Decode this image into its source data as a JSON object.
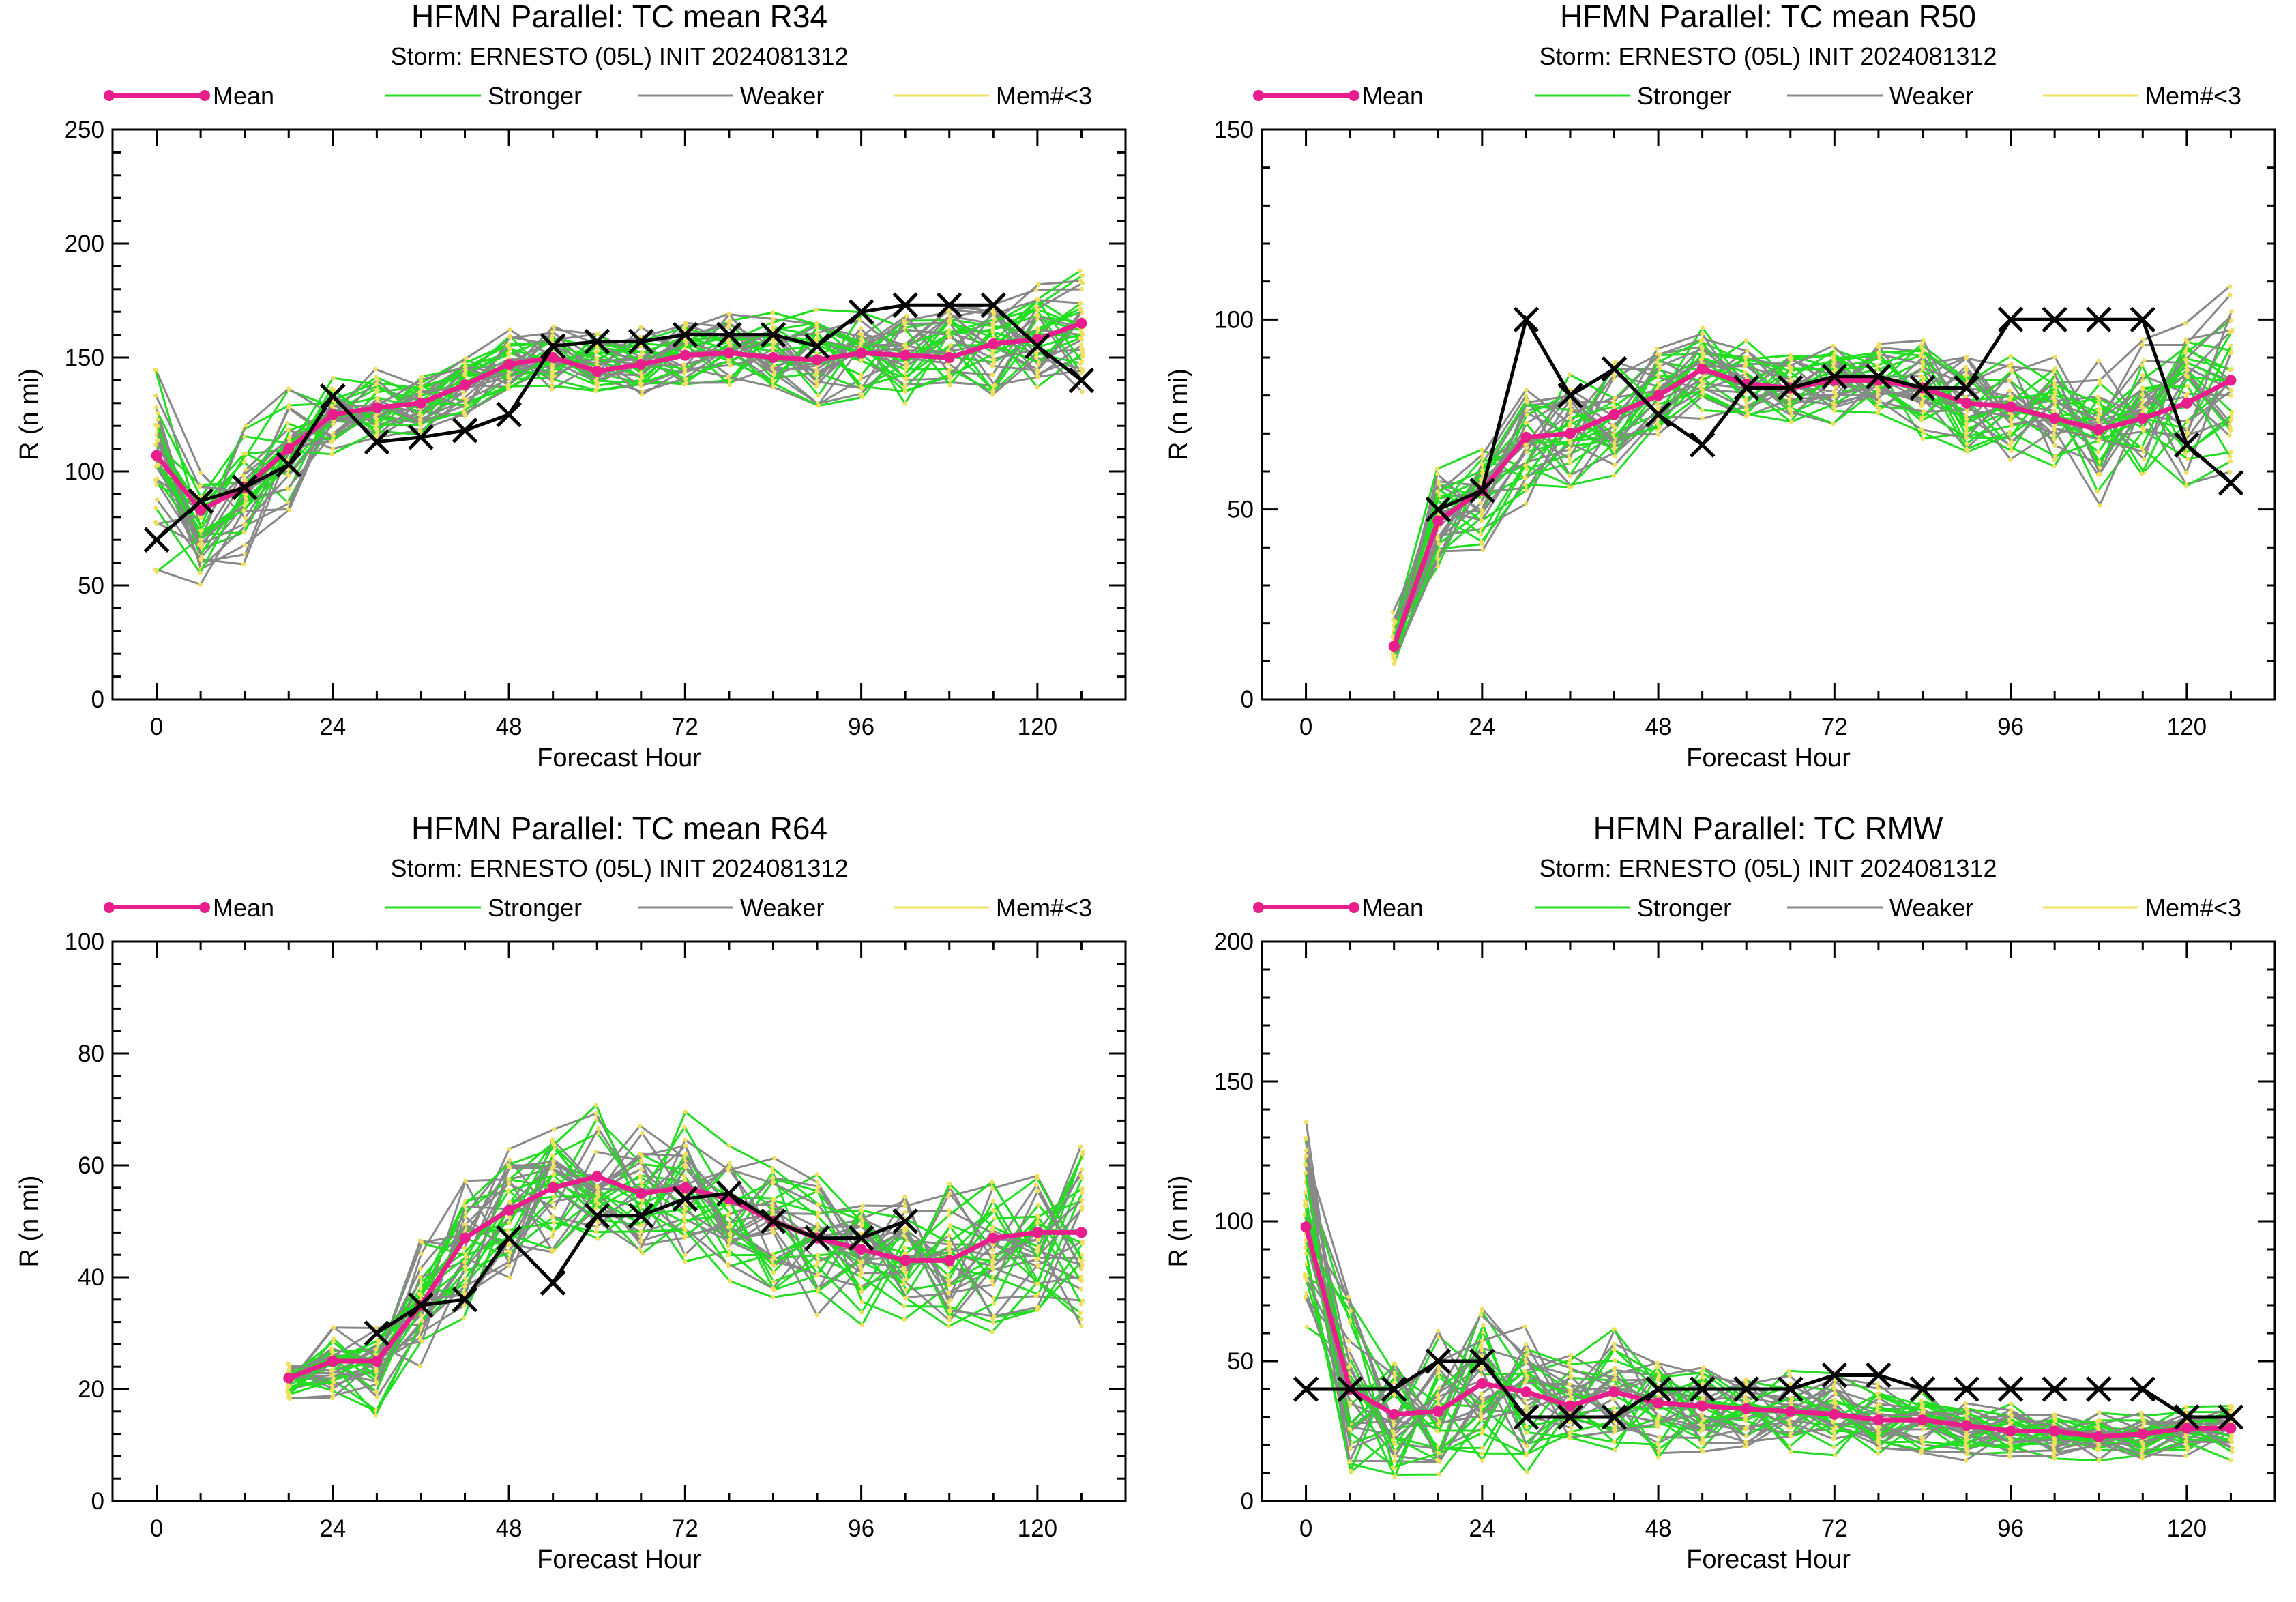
{
  "legend": {
    "mean": "Mean",
    "stronger": "Stronger",
    "weaker": "Weaker",
    "mem": "Mem#<3"
  },
  "colors": {
    "mean": "#e91e8c",
    "stronger": "#22dd22",
    "weaker": "#888888",
    "mem": "#f0e060",
    "obs": "#000000"
  },
  "chart_data": [
    {
      "id": "r34",
      "type": "line",
      "title": "HFMN Parallel: TC mean R34",
      "subtitle": "Storm: ERNESTO (05L) INIT 2024081312",
      "xlabel": "Forecast Hour",
      "ylabel": "R (n mi)",
      "xlim": [
        -6,
        132
      ],
      "ylim": [
        0,
        250
      ],
      "xticks": [
        0,
        24,
        48,
        72,
        96,
        120
      ],
      "yticks": [
        0,
        50,
        100,
        150,
        200,
        250
      ],
      "grid": false,
      "legend_position": "top",
      "series": [
        {
          "name": "Mean",
          "x": [
            0,
            6,
            12,
            18,
            24,
            30,
            36,
            42,
            48,
            54,
            60,
            66,
            72,
            78,
            84,
            90,
            96,
            102,
            108,
            114,
            120,
            126
          ],
          "y": [
            107,
            83,
            93,
            110,
            125,
            128,
            130,
            138,
            147,
            150,
            144,
            147,
            151,
            152,
            150,
            149,
            152,
            151,
            150,
            156,
            158,
            165
          ]
        },
        {
          "x": [
            0,
            6,
            12,
            18,
            24,
            30,
            36,
            42,
            48,
            54,
            60,
            66,
            72,
            78,
            84,
            90,
            96,
            102,
            108,
            114,
            120,
            126
          ],
          "y": [
            70,
            87,
            93,
            103,
            133,
            113,
            115,
            118,
            125,
            155,
            157,
            157,
            160,
            160,
            160,
            155,
            170,
            173,
            173,
            173,
            155,
            140
          ]
        }
      ],
      "ensemble": {
        "base": [
          100,
          76,
          90,
          108,
          124,
          128,
          131,
          138,
          146,
          150,
          146,
          147,
          151,
          151,
          150,
          149,
          151,
          151,
          151,
          155,
          157,
          162
        ],
        "spread": [
          40,
          20,
          25,
          22,
          15,
          13,
          13,
          14,
          14,
          13,
          13,
          14,
          15,
          15,
          16,
          17,
          18,
          18,
          20,
          21,
          22,
          23
        ]
      }
    },
    {
      "id": "r50",
      "type": "line",
      "title": "HFMN Parallel: TC mean R50",
      "subtitle": "Storm: ERNESTO (05L) INIT 2024081312",
      "xlabel": "Forecast Hour",
      "ylabel": "R (n mi)",
      "xlim": [
        -6,
        132
      ],
      "ylim": [
        0,
        150
      ],
      "xticks": [
        0,
        24,
        48,
        72,
        96,
        120
      ],
      "yticks": [
        0,
        50,
        100,
        150
      ],
      "grid": false,
      "legend_position": "top",
      "series": [
        {
          "name": "Mean",
          "x": [
            12,
            18,
            24,
            30,
            36,
            42,
            48,
            54,
            60,
            66,
            72,
            78,
            84,
            90,
            96,
            102,
            108,
            114,
            120,
            126
          ],
          "y": [
            14,
            47,
            55,
            69,
            70,
            75,
            80,
            87,
            83,
            82,
            84,
            84,
            82,
            78,
            77,
            74,
            71,
            74,
            78,
            84
          ]
        },
        {
          "x": [
            18,
            24,
            30,
            36,
            42,
            48,
            54,
            60,
            66,
            72,
            78,
            84,
            90,
            96,
            102,
            108,
            114,
            120,
            126
          ],
          "y": [
            50,
            55,
            100,
            80,
            87,
            75,
            67,
            82,
            82,
            85,
            85,
            82,
            82,
            100,
            100,
            100,
            100,
            67,
            57
          ]
        }
      ],
      "ensemble": {
        "base": [
          15,
          47,
          54,
          68,
          70,
          75,
          80,
          86,
          83,
          82,
          83,
          83,
          81,
          78,
          77,
          74,
          71,
          74,
          78,
          84
        ],
        "spread": [
          6,
          12,
          12,
          14,
          14,
          13,
          11,
          10,
          9,
          9,
          9,
          10,
          11,
          12,
          13,
          14,
          16,
          17,
          18,
          20
        ]
      }
    },
    {
      "id": "r64",
      "type": "line",
      "title": "HFMN Parallel: TC mean R64",
      "subtitle": "Storm: ERNESTO (05L) INIT 2024081312",
      "xlabel": "Forecast Hour",
      "ylabel": "R (n mi)",
      "xlim": [
        -6,
        132
      ],
      "ylim": [
        0,
        100
      ],
      "xticks": [
        0,
        24,
        48,
        72,
        96,
        120
      ],
      "yticks": [
        0,
        20,
        40,
        60,
        80,
        100
      ],
      "grid": false,
      "legend_position": "top",
      "series": [
        {
          "name": "Mean",
          "x": [
            18,
            24,
            30,
            36,
            42,
            48,
            54,
            60,
            66,
            72,
            78,
            84,
            90,
            96,
            102,
            108,
            114,
            120,
            126
          ],
          "y": [
            22,
            25,
            25,
            35,
            47,
            52,
            56,
            58,
            55,
            56,
            54,
            50,
            47,
            45,
            43,
            43,
            47,
            48,
            48
          ]
        },
        {
          "x": [
            30,
            36,
            42,
            48,
            54,
            60,
            66,
            72,
            78,
            84,
            90,
            96,
            102
          ],
          "y": [
            30,
            35,
            36,
            47,
            39,
            51,
            51,
            54,
            55,
            50,
            47,
            47,
            50
          ]
        }
      ],
      "ensemble": {
        "base": [
          22,
          25,
          25,
          36,
          47,
          52,
          56,
          57,
          55,
          55,
          53,
          50,
          47,
          45,
          44,
          44,
          46,
          47,
          48
        ],
        "spread": [
          3,
          6,
          8,
          10,
          11,
          12,
          11,
          11,
          11,
          11,
          11,
          11,
          11,
          11,
          12,
          12,
          12,
          13,
          14
        ]
      }
    },
    {
      "id": "rmw",
      "type": "line",
      "title": "HFMN Parallel: TC RMW",
      "subtitle": "Storm: ERNESTO (05L) INIT 2024081312",
      "xlabel": "Forecast Hour",
      "ylabel": "R (n mi)",
      "xlim": [
        -6,
        132
      ],
      "ylim": [
        0,
        200
      ],
      "xticks": [
        0,
        24,
        48,
        72,
        96,
        120
      ],
      "yticks": [
        0,
        50,
        100,
        150,
        200
      ],
      "grid": false,
      "legend_position": "top",
      "series": [
        {
          "name": "Mean",
          "x": [
            0,
            6,
            12,
            18,
            24,
            30,
            36,
            42,
            48,
            54,
            60,
            66,
            72,
            78,
            84,
            90,
            96,
            102,
            108,
            114,
            120,
            126
          ],
          "y": [
            98,
            40,
            31,
            32,
            42,
            39,
            34,
            39,
            35,
            34,
            33,
            32,
            31,
            29,
            29,
            27,
            25,
            25,
            23,
            24,
            26,
            26
          ]
        },
        {
          "x": [
            0,
            6,
            12,
            18,
            24,
            30,
            36,
            42,
            48,
            54,
            60,
            66,
            72,
            78,
            84,
            90,
            96,
            102,
            108,
            114,
            120,
            126
          ],
          "y": [
            40,
            40,
            40,
            50,
            50,
            30,
            30,
            30,
            40,
            40,
            40,
            40,
            45,
            45,
            40,
            40,
            40,
            40,
            40,
            40,
            30,
            30
          ]
        }
      ],
      "ensemble": {
        "base": [
          98,
          40,
          30,
          32,
          40,
          38,
          34,
          37,
          34,
          33,
          32,
          31,
          30,
          28,
          28,
          26,
          25,
          24,
          23,
          23,
          25,
          25
        ],
        "spread": [
          30,
          35,
          22,
          22,
          25,
          22,
          18,
          20,
          15,
          14,
          12,
          12,
          12,
          11,
          10,
          9,
          8,
          8,
          7,
          7,
          8,
          8
        ]
      }
    }
  ]
}
